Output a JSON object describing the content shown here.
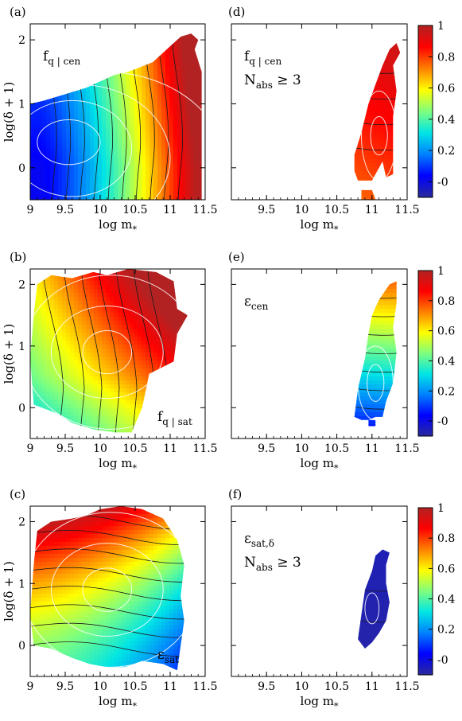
{
  "colorscale": {
    "stops": [
      "#2a2a9c",
      "#0000ff",
      "#0080ff",
      "#00e5e5",
      "#7fff7f",
      "#ffff00",
      "#ff8000",
      "#ff0000",
      "#b22222"
    ],
    "range": [
      -0.1,
      1
    ],
    "ticks": [
      "-0",
      "0.2",
      "0.4",
      "0.6",
      "0.8",
      "1"
    ]
  },
  "chart_data": [
    {
      "type": "heatmap",
      "id": "a",
      "label": "(a)",
      "annotation": [
        "f",
        "q | cen"
      ],
      "annotation_pos": "top-left",
      "xlabel": "log m*",
      "ylabel": "log(δ + 1)",
      "xlim": [
        9,
        11.5
      ],
      "ylim": [
        -0.5,
        2.25
      ],
      "xticks": [
        "9",
        "9.5",
        "10",
        "10.5",
        "11",
        "11.5"
      ],
      "yticks": [
        "0",
        "1",
        "2"
      ],
      "value_at": [
        [
          9.0,
          0.05
        ],
        [
          10.0,
          0.45
        ],
        [
          11.0,
          0.88
        ],
        [
          11.4,
          0.95
        ]
      ]
    },
    {
      "type": "heatmap",
      "id": "b",
      "label": "(b)",
      "annotation": [
        "f",
        "q | sat"
      ],
      "annotation_pos": "bottom-right",
      "xlabel": "log m*",
      "ylabel": "log(δ + 1)",
      "xlim": [
        9,
        11.5
      ],
      "ylim": [
        -0.5,
        2.25
      ],
      "xticks": [
        "9",
        "9.5",
        "10",
        "10.5",
        "11",
        "11.5"
      ],
      "yticks": [
        "0",
        "1",
        "2"
      ],
      "value_at": [
        [
          9.0,
          0.45
        ],
        [
          10.0,
          0.6
        ],
        [
          11.0,
          0.85
        ]
      ]
    },
    {
      "type": "heatmap",
      "id": "c",
      "label": "(c)",
      "annotation": [
        "ε",
        "sat"
      ],
      "annotation_pos": "bottom-right",
      "xlabel": "log m*",
      "ylabel": "log(δ + 1)",
      "xlim": [
        9,
        11.5
      ],
      "ylim": [
        -0.5,
        2.25
      ],
      "xticks": [
        "9",
        "9.5",
        "10",
        "10.5",
        "11",
        "11.5"
      ],
      "yticks": [
        "0",
        "1",
        "2"
      ],
      "value_at": [
        [
          9.0,
          0.35
        ],
        [
          10.0,
          0.45
        ],
        [
          11.0,
          0.2
        ]
      ]
    },
    {
      "type": "heatmap",
      "id": "d",
      "label": "(d)",
      "annotation": [
        "f",
        "q | cen",
        "N",
        "abs",
        " ≥ 3"
      ],
      "annotation_pos": "top-left",
      "xlabel": "log m*",
      "xlim": [
        9,
        11.5
      ],
      "ylim": [
        -0.5,
        2.25
      ],
      "xticks": [
        "9.5",
        "10",
        "10.5",
        "11",
        "11.5"
      ],
      "value_at": [
        [
          10.8,
          0.82
        ],
        [
          11.3,
          0.98
        ]
      ]
    },
    {
      "type": "heatmap",
      "id": "e",
      "label": "(e)",
      "annotation": [
        "ε",
        "cen"
      ],
      "annotation_pos": "top-left",
      "xlabel": "log m*",
      "xlim": [
        9,
        11.5
      ],
      "ylim": [
        -0.5,
        2.25
      ],
      "xticks": [
        "9.5",
        "10",
        "10.5",
        "11",
        "11.5"
      ],
      "value_at": [
        [
          -0.3,
          0.08
        ],
        [
          1.0,
          0.45
        ],
        [
          2.0,
          0.72
        ]
      ]
    },
    {
      "type": "heatmap",
      "id": "f",
      "label": "(f)",
      "annotation": [
        "ε",
        "sat,δ",
        "N",
        "abs",
        " ≥ 3"
      ],
      "annotation_pos": "top-left",
      "xlabel": "log m*",
      "xlim": [
        9,
        11.5
      ],
      "ylim": [
        -0.5,
        2.25
      ],
      "xticks": [
        "9.5",
        "10",
        "10.5",
        "11",
        "11.5"
      ],
      "value_at": [
        [
          11.0,
          -0.1
        ]
      ]
    }
  ]
}
